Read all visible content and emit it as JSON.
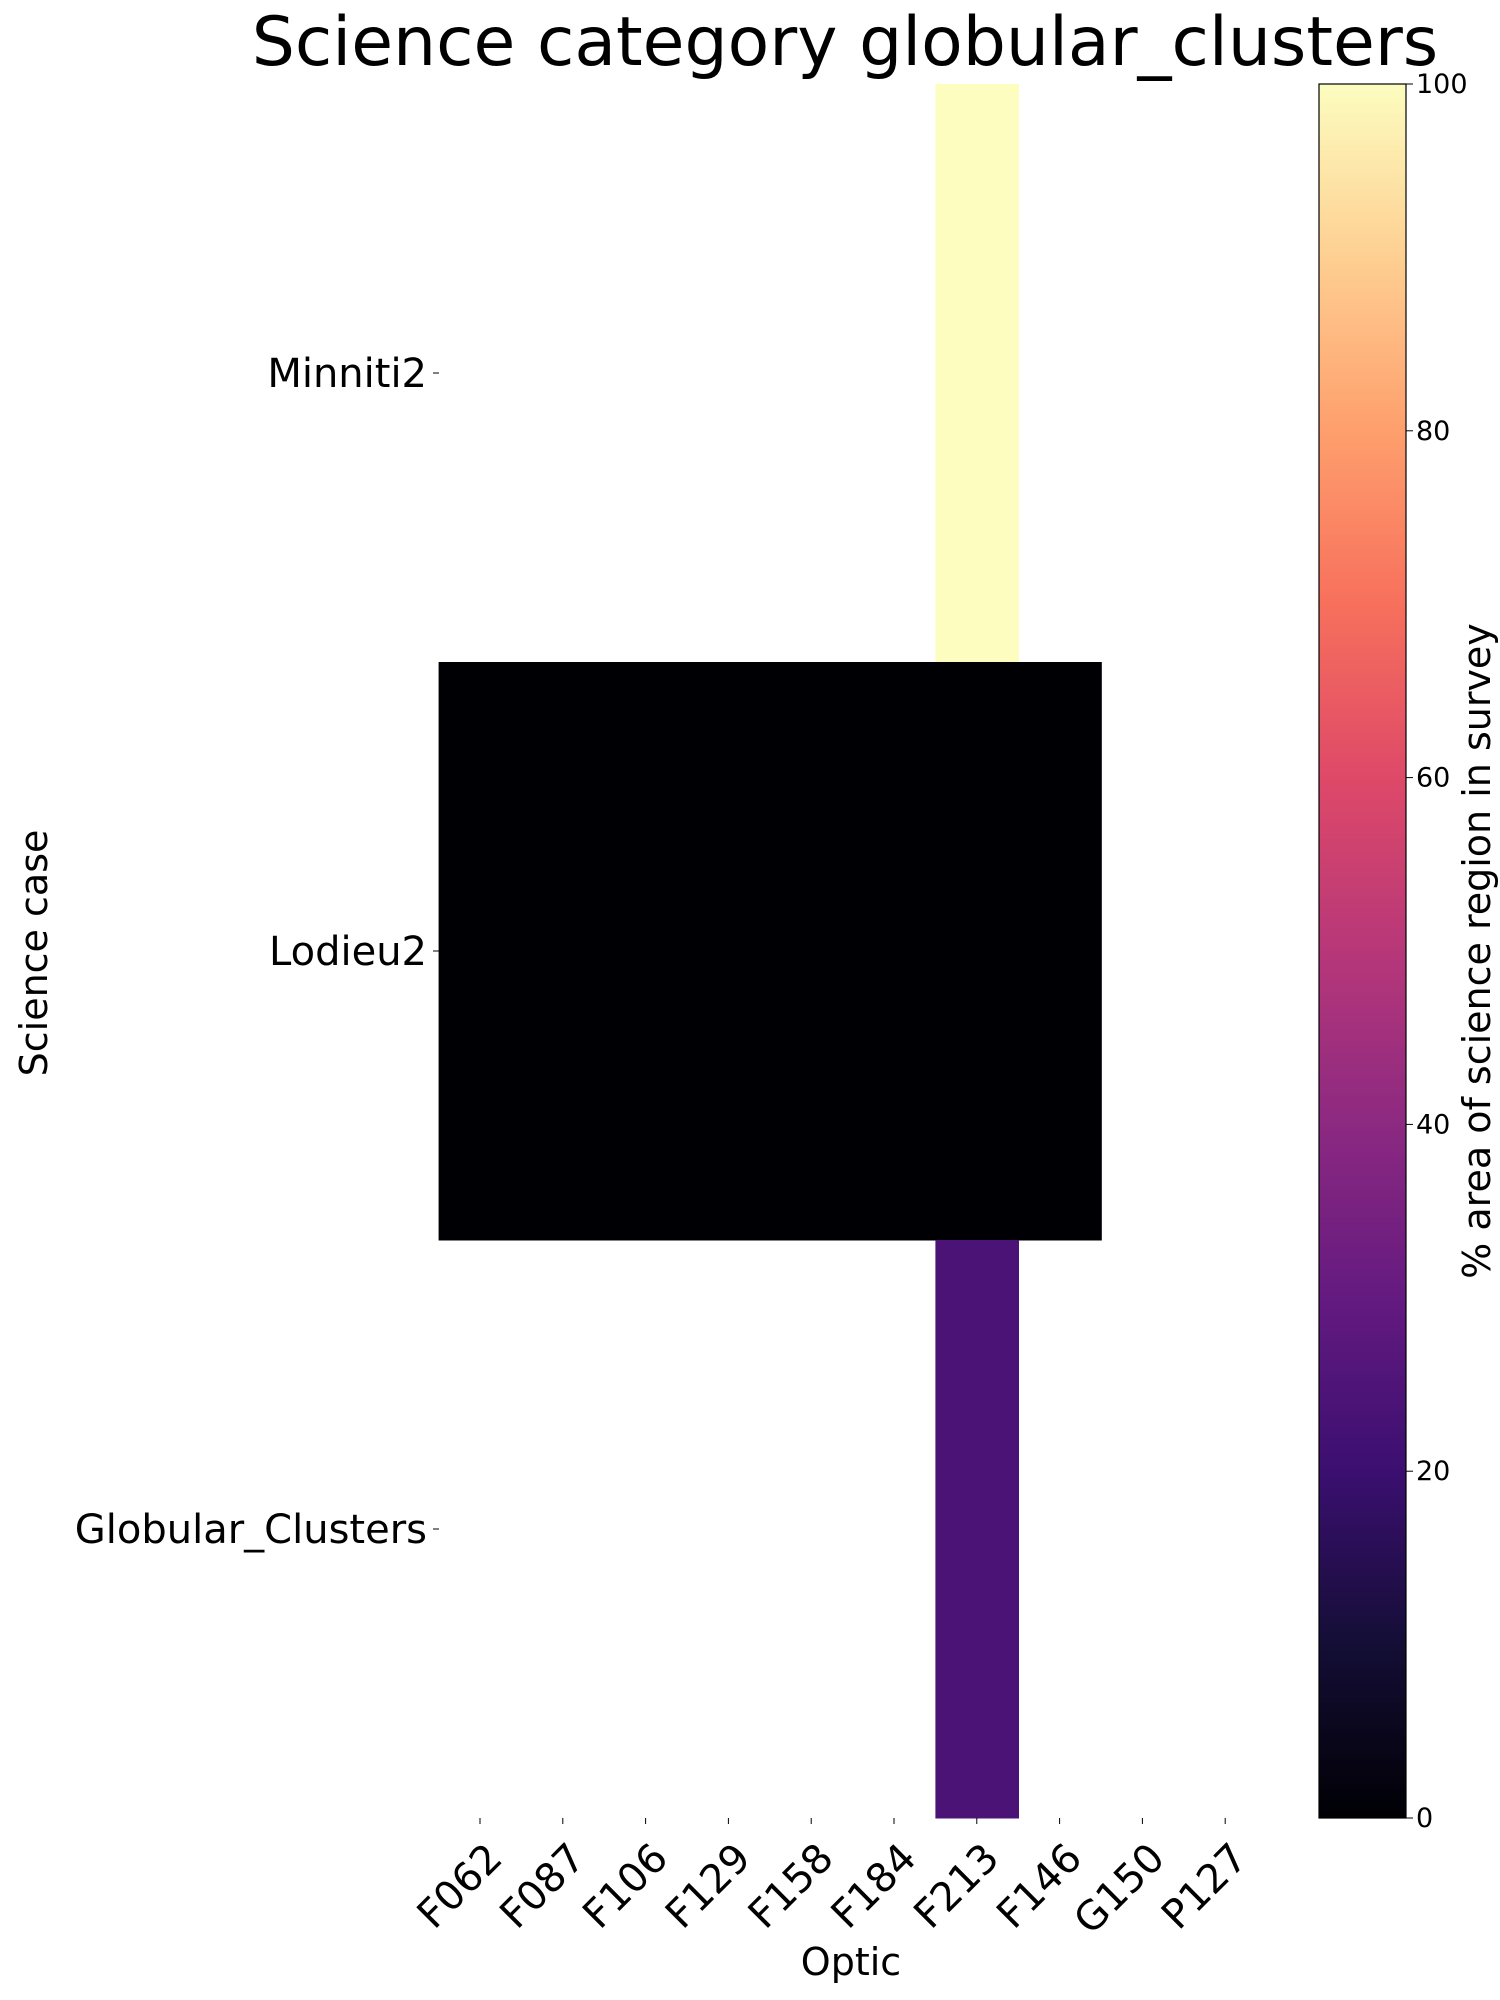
{
  "chart_data": {
    "type": "heatmap",
    "title": "Science category globular_clusters",
    "xlabel": "Optic",
    "ylabel": "Science case",
    "x_categories": [
      "F062",
      "F087",
      "F106",
      "F129",
      "F158",
      "F184",
      "F213",
      "F146",
      "G150",
      "P127"
    ],
    "y_categories": [
      "Minniti2",
      "Lodieu2",
      "Globular_Clusters"
    ],
    "cells": [
      {
        "y": "Minniti2",
        "x": "F213",
        "value": 100
      },
      {
        "y": "Lodieu2",
        "x": "F062",
        "value": 0
      },
      {
        "y": "Lodieu2",
        "x": "F087",
        "value": 0
      },
      {
        "y": "Lodieu2",
        "x": "F106",
        "value": 0
      },
      {
        "y": "Lodieu2",
        "x": "F129",
        "value": 0
      },
      {
        "y": "Lodieu2",
        "x": "F158",
        "value": 0
      },
      {
        "y": "Lodieu2",
        "x": "F184",
        "value": 0
      },
      {
        "y": "Lodieu2",
        "x": "F213",
        "value": 0
      },
      {
        "y": "Lodieu2",
        "x": "F146",
        "value": 0
      },
      {
        "y": "Globular_Clusters",
        "x": "F213",
        "value": 24
      }
    ],
    "colorbar": {
      "label": "% area of science region in survey",
      "range": [
        0,
        100
      ],
      "ticks": [
        0,
        20,
        40,
        60,
        80,
        100
      ],
      "colormap": "magma"
    }
  }
}
